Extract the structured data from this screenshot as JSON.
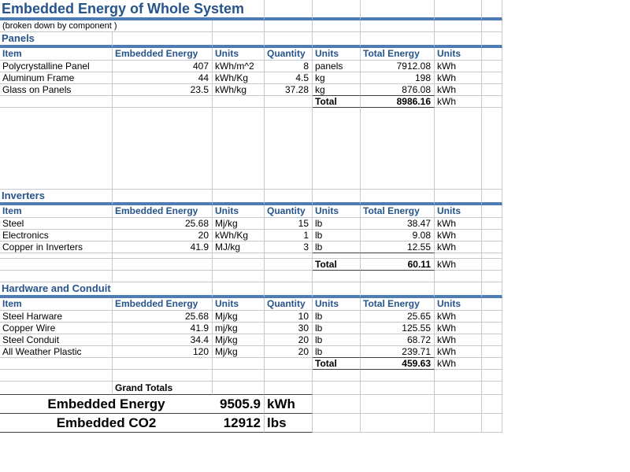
{
  "title": "Embedded Energy of Whole System",
  "subtitle": "(broken down by  component )",
  "columns": [
    "Item",
    "Embedded Energy",
    "Units",
    "Quantity",
    "Units",
    "Total Energy",
    "Units"
  ],
  "sections": [
    {
      "name": "Panels",
      "rows": [
        {
          "item": "Polycrystalline Panel",
          "embedded_energy": "407",
          "units": "kWh/m^2",
          "quantity": "8",
          "quantity_units": "panels",
          "total_energy": "7912.08",
          "total_units": "kWh"
        },
        {
          "item": "Aluminum Frame",
          "embedded_energy": "44",
          "units": "kWh/Kg",
          "quantity": "4.5",
          "quantity_units": "kg",
          "total_energy": "198",
          "total_units": "kWh"
        },
        {
          "item": "Glass on Panels",
          "embedded_energy": "23.5",
          "units": "kWh/kg",
          "quantity": "37.28",
          "quantity_units": "kg",
          "total_energy": "876.08",
          "total_units": "kWh"
        }
      ],
      "total": {
        "label": "Total",
        "value": "8986.16",
        "units": "kWh"
      }
    },
    {
      "name": "Inverters",
      "rows": [
        {
          "item": "Steel",
          "embedded_energy": "25.68",
          "units": "Mj/kg",
          "quantity": "15",
          "quantity_units": "lb",
          "total_energy": "38.47",
          "total_units": "kWh"
        },
        {
          "item": "Electronics",
          "embedded_energy": "20",
          "units": "kWh/Kg",
          "quantity": "1",
          "quantity_units": "lb",
          "total_energy": "9.08",
          "total_units": "kWh"
        },
        {
          "item": "Copper in Inverters",
          "embedded_energy": "41.9",
          "units": "MJ/kg",
          "quantity": "3",
          "quantity_units": "lb",
          "total_energy": "12.55",
          "total_units": "kWh"
        }
      ],
      "total": {
        "label": "Total",
        "value": "60.11",
        "units": "kWh"
      }
    },
    {
      "name": "Hardware and Conduit",
      "rows": [
        {
          "item": "Steel Harware",
          "embedded_energy": "25.68",
          "units": "Mj/kg",
          "quantity": "10",
          "quantity_units": "lb",
          "total_energy": "25.65",
          "total_units": "kWh"
        },
        {
          "item": "Copper Wire",
          "embedded_energy": "41.9",
          "units": "mj/kg",
          "quantity": "30",
          "quantity_units": "lb",
          "total_energy": "125.55",
          "total_units": "kWh"
        },
        {
          "item": "Steel Conduit",
          "embedded_energy": "34.4",
          "units": "Mj/kg",
          "quantity": "20",
          "quantity_units": "lb",
          "total_energy": "68.72",
          "total_units": "kWh"
        },
        {
          "item": "All Weather Plastic",
          "embedded_energy": "120",
          "units": "Mj/kg",
          "quantity": "20",
          "quantity_units": "lb",
          "total_energy": "239.71",
          "total_units": "kWh"
        }
      ],
      "total": {
        "label": "Total",
        "value": "459.63",
        "units": "kWh"
      }
    }
  ],
  "grand_totals": {
    "header": "Grand Totals",
    "rows": [
      {
        "label": "Embedded Energy",
        "value": "9505.9",
        "units": "kWh"
      },
      {
        "label": "Embedded CO2",
        "value": "12912",
        "units": "lbs"
      }
    ]
  },
  "colors": {
    "heading_blue": "#26548B",
    "divider_blue": "#4E7CB5",
    "gridline": "#C5C9D0",
    "total_border": "#3D3D3D"
  }
}
